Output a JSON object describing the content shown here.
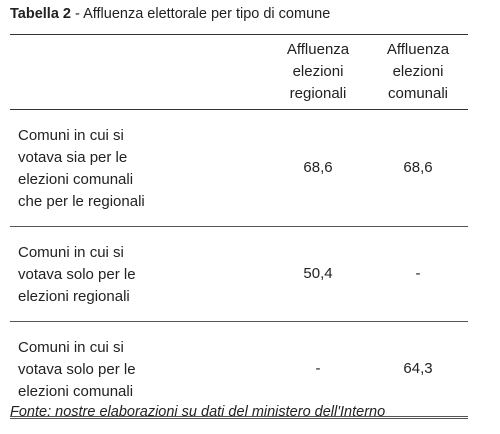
{
  "title": {
    "prefix": "Tabella 2",
    "separator": " - ",
    "text": "Affluenza elettorale per tipo di comune"
  },
  "table": {
    "headers": [
      {
        "lines": [
          "",
          "",
          ""
        ]
      },
      {
        "lines": [
          "Affluenza",
          "elezioni",
          "regionali"
        ]
      },
      {
        "lines": [
          "Affluenza",
          "elezioni",
          "comunali"
        ]
      }
    ],
    "rows": [
      {
        "label_lines": [
          "Comuni in cui si",
          "votava sia per le",
          "elezioni comunali",
          "che per le regionali"
        ],
        "regionali": "68,6",
        "comunali": "68,6"
      },
      {
        "label_lines": [
          "Comuni in cui si",
          "votava solo per le",
          "elezioni regionali"
        ],
        "regionali": "50,4",
        "comunali": "-"
      },
      {
        "label_lines": [
          "Comuni in cui si",
          "votava solo per le",
          "elezioni comunali"
        ],
        "regionali": "-",
        "comunali": "64,3"
      }
    ]
  },
  "source": "Fonte: nostre elaborazioni su dati del ministero dell'Interno"
}
